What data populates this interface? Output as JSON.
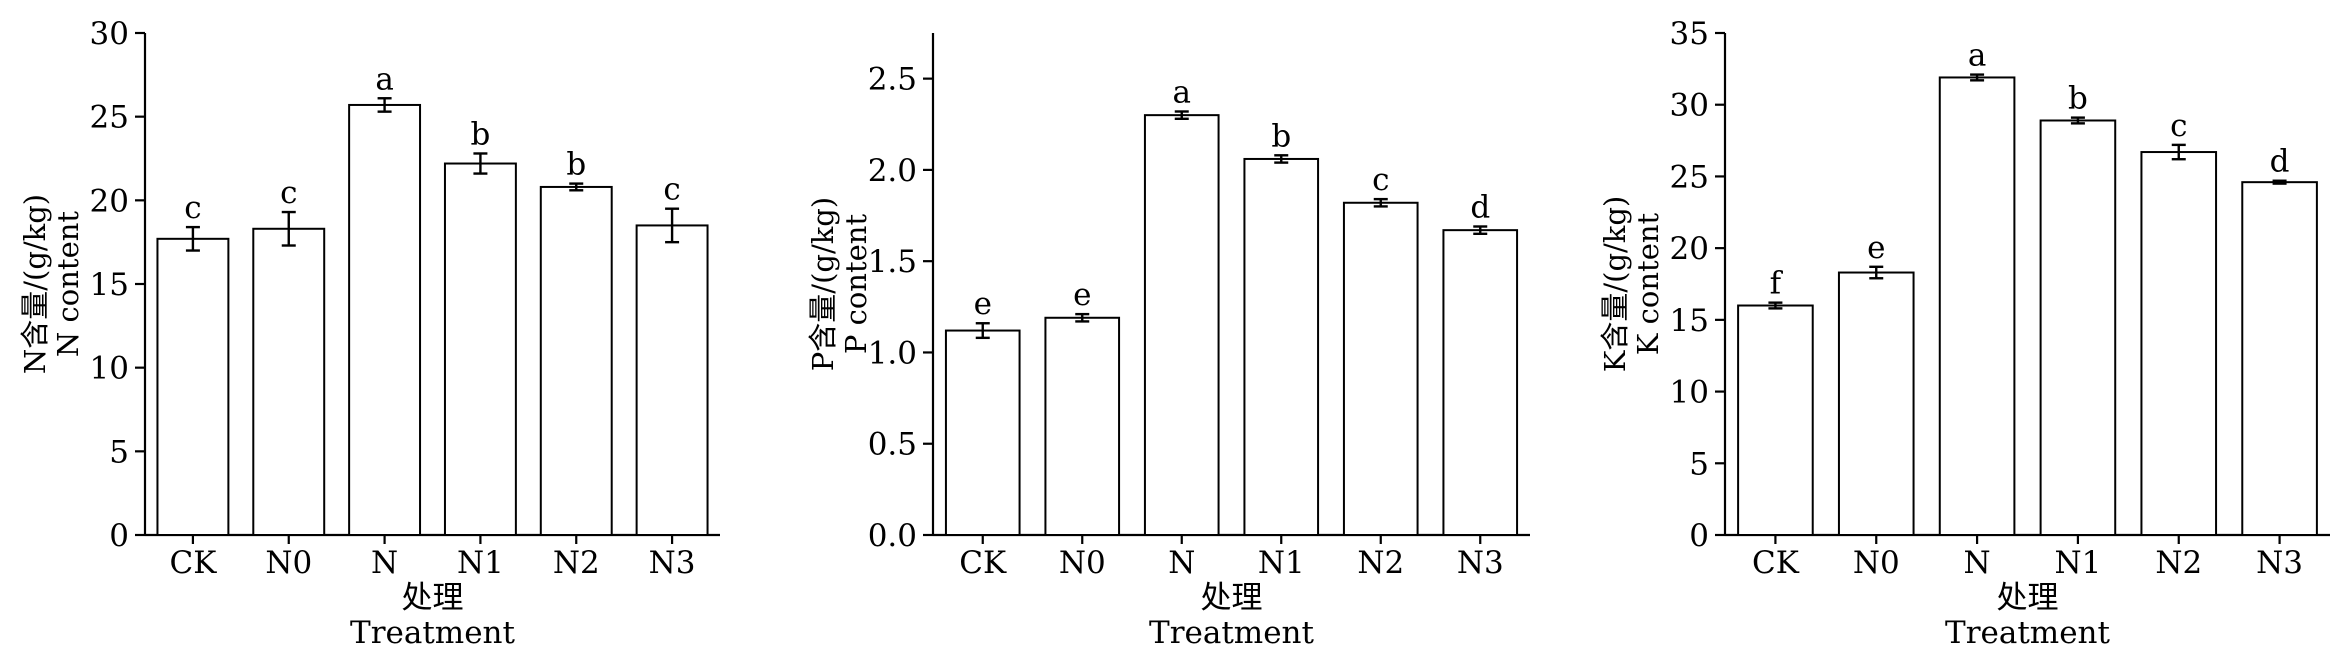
{
  "chart_data": [
    {
      "type": "bar",
      "categories": [
        "CK",
        "N0",
        "N",
        "N1",
        "N2",
        "N3"
      ],
      "values": [
        17.7,
        18.3,
        25.7,
        22.2,
        20.8,
        18.5
      ],
      "errors": [
        0.7,
        1.0,
        0.4,
        0.6,
        0.2,
        1.0
      ],
      "letters": [
        "c",
        "c",
        "a",
        "b",
        "b",
        "c"
      ],
      "ylim": [
        0,
        30
      ],
      "yticks": [
        0,
        5,
        10,
        15,
        20,
        25,
        30
      ],
      "ytick_labels": [
        "0",
        "5",
        "10",
        "15",
        "20",
        "25",
        "30"
      ],
      "ylabel_cn": "N含量/(g/kg)",
      "ylabel_en": "N content",
      "xlabel_cn": "处理",
      "xlabel_en": "Treatment"
    },
    {
      "type": "bar",
      "categories": [
        "CK",
        "N0",
        "N",
        "N1",
        "N2",
        "N3"
      ],
      "values": [
        1.12,
        1.19,
        2.3,
        2.06,
        1.82,
        1.67
      ],
      "errors": [
        0.04,
        0.02,
        0.02,
        0.02,
        0.02,
        0.02
      ],
      "letters": [
        "e",
        "e",
        "a",
        "b",
        "c",
        "d"
      ],
      "ylim": [
        0,
        2.75
      ],
      "yticks": [
        0,
        0.5,
        1.0,
        1.5,
        2.0,
        2.5
      ],
      "ytick_labels": [
        "0.0",
        "0.5",
        "1.0",
        "1.5",
        "2.0",
        "2.5"
      ],
      "ylabel_cn": "P含量/(g/kg)",
      "ylabel_en": "P content",
      "xlabel_cn": "处理",
      "xlabel_en": "Treatment"
    },
    {
      "type": "bar",
      "categories": [
        "CK",
        "N0",
        "N",
        "N1",
        "N2",
        "N3"
      ],
      "values": [
        16.0,
        18.3,
        31.9,
        28.9,
        26.7,
        24.6
      ],
      "errors": [
        0.2,
        0.4,
        0.2,
        0.2,
        0.5,
        0.1
      ],
      "letters": [
        "f",
        "e",
        "a",
        "b",
        "c",
        "d"
      ],
      "ylim": [
        0,
        35
      ],
      "yticks": [
        0,
        5,
        10,
        15,
        20,
        25,
        30,
        35
      ],
      "ytick_labels": [
        "0",
        "5",
        "10",
        "15",
        "20",
        "25",
        "30",
        "35"
      ],
      "ylabel_cn": "K含量/(g/kg)",
      "ylabel_en": "K content",
      "xlabel_cn": "处理",
      "xlabel_en": "Treatment"
    }
  ]
}
